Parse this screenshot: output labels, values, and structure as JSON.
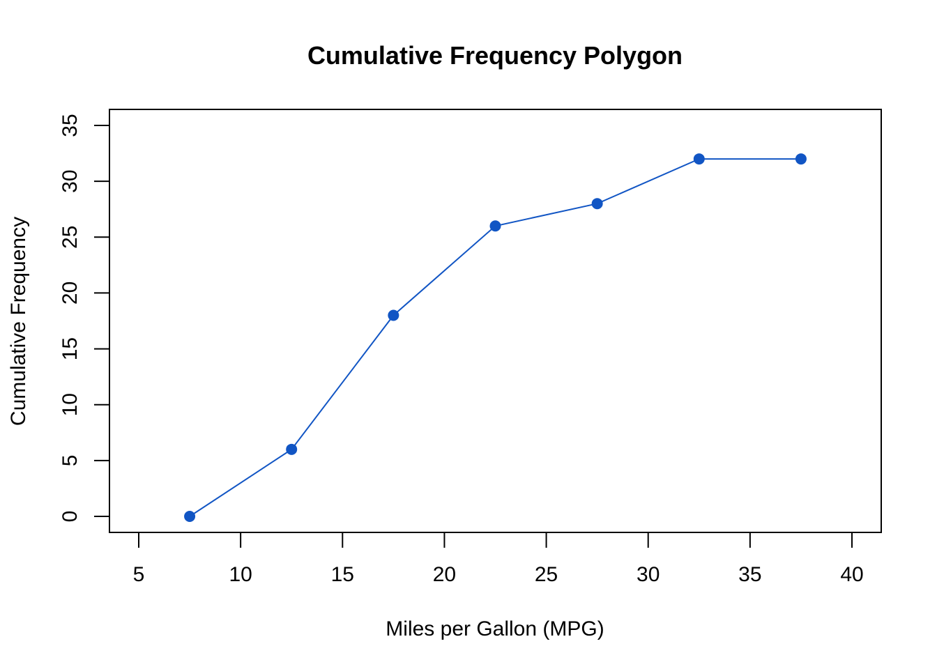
{
  "chart_data": {
    "type": "line",
    "title": "Cumulative Frequency Polygon",
    "xlabel": "Miles per Gallon (MPG)",
    "ylabel": "Cumulative Frequency",
    "xlim": [
      5,
      40
    ],
    "ylim": [
      0,
      35
    ],
    "x_ticks": [
      5,
      10,
      15,
      20,
      25,
      30,
      35,
      40
    ],
    "y_ticks": [
      0,
      5,
      10,
      15,
      20,
      25,
      30,
      35
    ],
    "x": [
      7.5,
      12.5,
      17.5,
      22.5,
      27.5,
      32.5,
      37.5
    ],
    "series": [
      {
        "values": [
          0,
          6,
          18,
          26,
          28,
          32,
          32
        ],
        "color": "#1155C4",
        "marker": "filled-circle"
      }
    ],
    "grid": false,
    "legend": "none"
  }
}
